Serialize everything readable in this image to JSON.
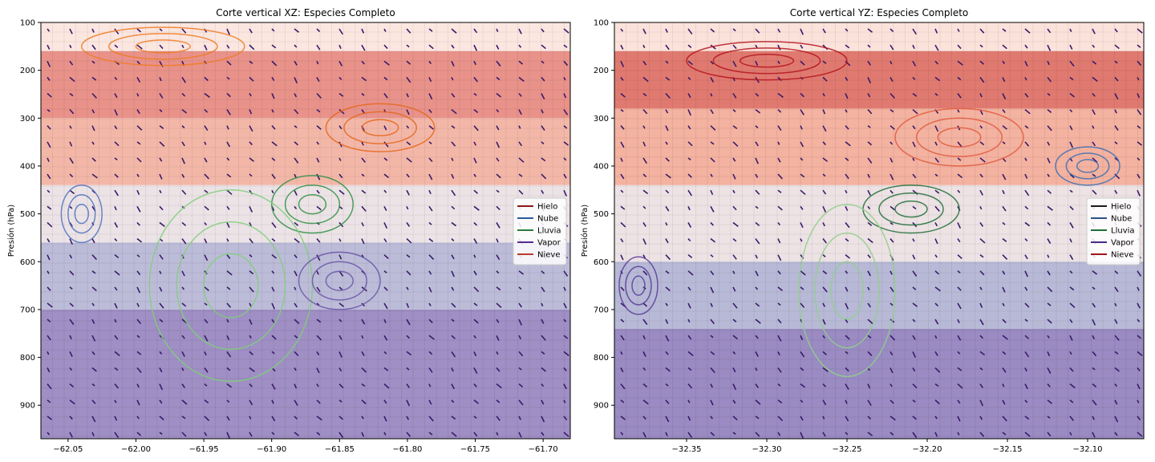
{
  "chart_data": [
    {
      "type": "heatmap",
      "title": "Corte vertical XZ: Especies Completo",
      "xlabel": "",
      "ylabel": "Presión (hPa)",
      "xlim": [
        -62.07,
        -61.68
      ],
      "ylim": [
        100,
        970
      ],
      "y_inverted": true,
      "x_ticks": [
        -62.05,
        -62.0,
        -61.95,
        -61.9,
        -61.85,
        -61.8,
        -61.75,
        -61.7
      ],
      "x_tick_labels": [
        "−62.05",
        "−62.00",
        "−61.95",
        "−61.90",
        "−61.85",
        "−61.80",
        "−61.75",
        "−61.70"
      ],
      "y_ticks": [
        100,
        200,
        300,
        400,
        500,
        600,
        700,
        800,
        900
      ],
      "y_tick_labels": [
        "100",
        "200",
        "300",
        "400",
        "500",
        "600",
        "700",
        "800",
        "900"
      ],
      "layers": [
        {
          "p_top": 100,
          "p_bottom": 160,
          "color": "#fbe6e0"
        },
        {
          "p_top": 160,
          "p_bottom": 300,
          "color": "#e8928a"
        },
        {
          "p_top": 300,
          "p_bottom": 440,
          "color": "#f3b7a8"
        },
        {
          "p_top": 440,
          "p_bottom": 560,
          "color": "#ece3e6"
        },
        {
          "p_top": 560,
          "p_bottom": 700,
          "color": "#bdbcd8"
        },
        {
          "p_top": 700,
          "p_bottom": 970,
          "color": "#9f8fc4"
        }
      ],
      "contours": [
        {
          "color": "#f07a20",
          "center": [
            -61.98,
            150
          ],
          "size": [
            0.06,
            40
          ]
        },
        {
          "color": "#e4671a",
          "center": [
            -61.82,
            320
          ],
          "size": [
            0.04,
            50
          ]
        },
        {
          "color": "#2f8f44",
          "center": [
            -61.87,
            480
          ],
          "size": [
            0.03,
            60
          ]
        },
        {
          "color": "#7fcf7a",
          "center": [
            -61.93,
            650
          ],
          "size": [
            0.06,
            200
          ]
        },
        {
          "color": "#4f73c0",
          "center": [
            -62.04,
            500
          ],
          "size": [
            0.015,
            60
          ]
        },
        {
          "color": "#6a55a8",
          "center": [
            -61.85,
            640
          ],
          "size": [
            0.03,
            60
          ]
        }
      ],
      "legend": {
        "placement": "right",
        "entries": [
          {
            "label": "Hielo",
            "color": "#8b1a1a"
          },
          {
            "label": "Nube",
            "color": "#2b5a9c"
          },
          {
            "label": "Lluvia",
            "color": "#2a7a3a"
          },
          {
            "label": "Vapor",
            "color": "#5a2a90"
          },
          {
            "label": "Nieve",
            "color": "#b83a2a"
          }
        ]
      }
    },
    {
      "type": "heatmap",
      "title": "Corte vertical YZ: Especies Completo",
      "xlabel": "",
      "ylabel": "Presión (hPa)",
      "xlim": [
        -32.395,
        -32.065
      ],
      "ylim": [
        100,
        970
      ],
      "y_inverted": true,
      "x_ticks": [
        -32.35,
        -32.3,
        -32.25,
        -32.2,
        -32.15,
        -32.1
      ],
      "x_tick_labels": [
        "−32.35",
        "−32.30",
        "−32.25",
        "−32.20",
        "−32.15",
        "−32.10"
      ],
      "y_ticks": [
        100,
        200,
        300,
        400,
        500,
        600,
        700,
        800,
        900
      ],
      "y_tick_labels": [
        "100",
        "200",
        "300",
        "400",
        "500",
        "600",
        "700",
        "800",
        "900"
      ],
      "layers": [
        {
          "p_top": 100,
          "p_bottom": 160,
          "color": "#fbe2da"
        },
        {
          "p_top": 160,
          "p_bottom": 280,
          "color": "#e07a70"
        },
        {
          "p_top": 280,
          "p_bottom": 440,
          "color": "#f4b2a0"
        },
        {
          "p_top": 440,
          "p_bottom": 600,
          "color": "#ede2e4"
        },
        {
          "p_top": 600,
          "p_bottom": 740,
          "color": "#b7b9d6"
        },
        {
          "p_top": 740,
          "p_bottom": 970,
          "color": "#9a8bc2"
        }
      ],
      "contours": [
        {
          "color": "#b4141e",
          "center": [
            -32.3,
            180
          ],
          "size": [
            0.05,
            40
          ]
        },
        {
          "color": "#e05a40",
          "center": [
            -32.18,
            340
          ],
          "size": [
            0.04,
            60
          ]
        },
        {
          "color": "#1f6f3a",
          "center": [
            -32.21,
            490
          ],
          "size": [
            0.03,
            50
          ]
        },
        {
          "color": "#8fd08a",
          "center": [
            -32.25,
            660
          ],
          "size": [
            0.03,
            180
          ]
        },
        {
          "color": "#5a3c9a",
          "center": [
            -32.38,
            650
          ],
          "size": [
            0.012,
            60
          ]
        },
        {
          "color": "#3b6fb0",
          "center": [
            -32.1,
            400
          ],
          "size": [
            0.02,
            40
          ]
        }
      ],
      "legend": {
        "placement": "right",
        "entries": [
          {
            "label": "Hielo",
            "color": "#1a1a1a"
          },
          {
            "label": "Nube",
            "color": "#2b4f8a"
          },
          {
            "label": "Lluvia",
            "color": "#1f6f3a"
          },
          {
            "label": "Vapor",
            "color": "#4a2a8a"
          },
          {
            "label": "Nieve",
            "color": "#a0141e"
          }
        ]
      }
    }
  ]
}
